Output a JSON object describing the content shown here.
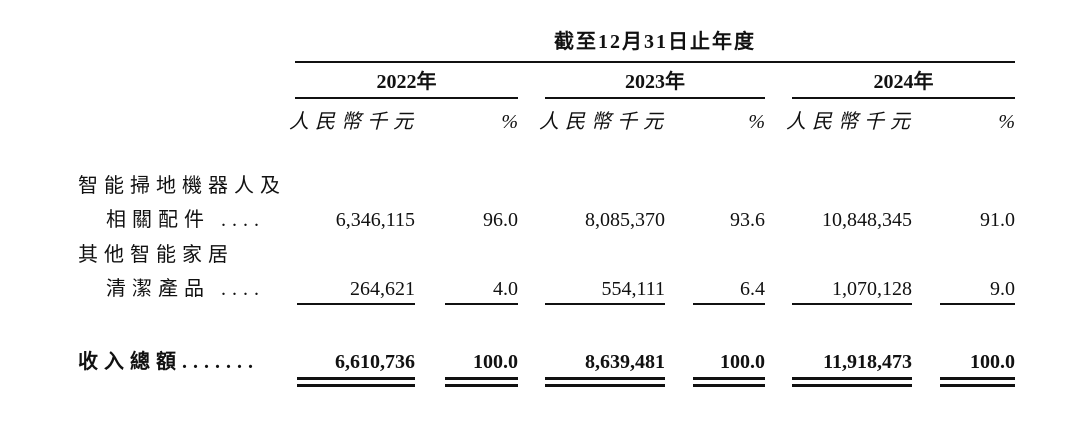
{
  "header": {
    "title": "截至12月31日止年度"
  },
  "columns": [
    {
      "year": "2022年",
      "currency": "人民幣千元",
      "percent": "%"
    },
    {
      "year": "2023年",
      "currency": "人民幣千元",
      "percent": "%"
    },
    {
      "year": "2024年",
      "currency": "人民幣千元",
      "percent": "%"
    }
  ],
  "rows": [
    {
      "label": [
        "智能掃地機器人及",
        "相關配件 ...."
      ],
      "values": [
        "6,346,115",
        "96.0",
        "8,085,370",
        "93.6",
        "10,848,345",
        "91.0"
      ]
    },
    {
      "label": [
        "其他智能家居",
        "清潔產品 ...."
      ],
      "values": [
        "264,621",
        "4.0",
        "554,111",
        "6.4",
        "1,070,128",
        "9.0"
      ]
    },
    {
      "label": [
        "收入總額......."
      ],
      "values": [
        "6,610,736",
        "100.0",
        "8,639,481",
        "100.0",
        "11,918,473",
        "100.0"
      ]
    }
  ]
}
